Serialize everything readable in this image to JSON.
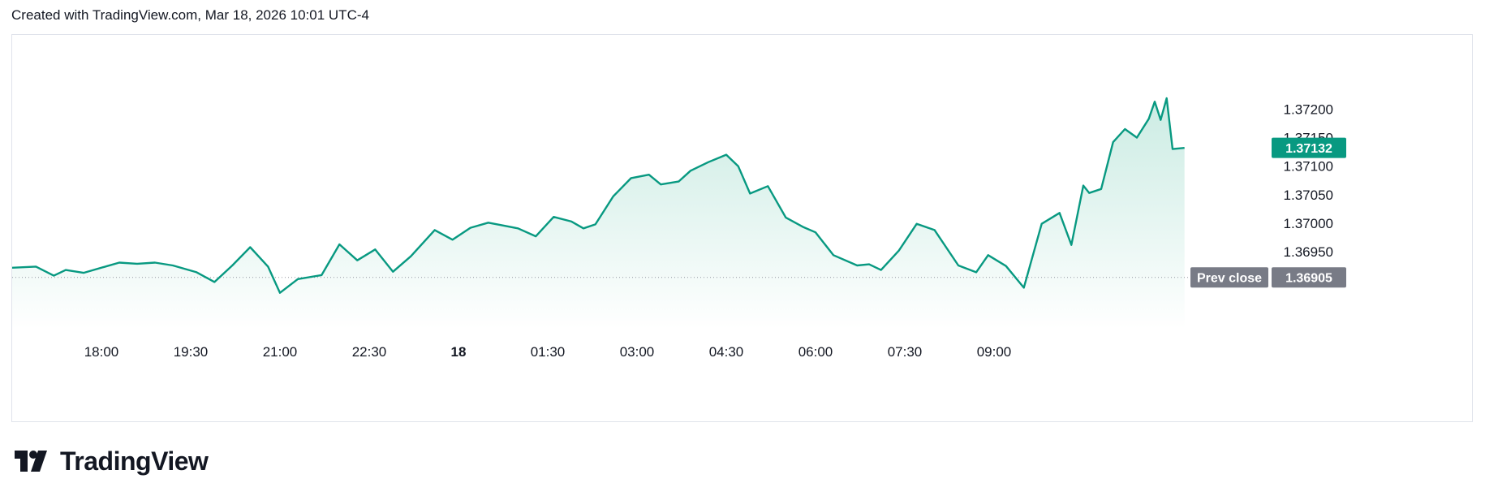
{
  "header": {
    "created_text": "Created with TradingView.com, Mar 18, 2026 10:01 UTC-4"
  },
  "brand": {
    "name": "TradingView",
    "logo_icon": "tradingview-logo-icon"
  },
  "colors": {
    "line": "#089981",
    "fill_top": "#c9ebe2",
    "fill_bottom": "#ffffff",
    "last_price_bg": "#089981",
    "prev_close_bg": "#787b86"
  },
  "labels": {
    "last_price": "1.37132",
    "prev_close_text": "Prev close",
    "prev_close_value": "1.36905"
  },
  "chart_data": {
    "type": "area",
    "title": "",
    "xlabel": "",
    "ylabel": "",
    "x_ticks": [
      "18:00",
      "19:30",
      "21:00",
      "22:30",
      "18",
      "01:30",
      "03:00",
      "04:30",
      "06:00",
      "07:30",
      "09:00"
    ],
    "x_tick_bold": [
      false,
      false,
      false,
      false,
      true,
      false,
      false,
      false,
      false,
      false,
      false
    ],
    "y_ticks": [
      "1.37200",
      "1.37150",
      "1.37100",
      "1.37050",
      "1.37000",
      "1.36950"
    ],
    "ylim": [
      1.36815,
      1.3733
    ],
    "last_price": 1.37132,
    "prev_close": 1.36905,
    "x_hours": [
      16.5,
      16.9,
      17.2,
      17.4,
      17.7,
      18.1,
      18.3,
      18.6,
      18.9,
      19.2,
      19.6,
      19.9,
      20.2,
      20.5,
      20.8,
      21.0,
      21.3,
      21.7,
      22.0,
      22.3,
      22.6,
      22.9,
      23.2,
      23.6,
      23.9,
      24.2,
      24.5,
      24.7,
      25.0,
      25.3,
      25.6,
      25.9,
      26.1,
      26.3,
      26.6,
      26.9,
      27.2,
      27.4,
      27.7,
      27.9,
      28.2,
      28.5,
      28.7,
      28.9,
      29.2,
      29.5,
      29.8,
      30.0,
      30.3,
      30.7,
      30.9,
      31.1,
      31.4,
      31.7,
      32.0,
      32.4,
      32.7,
      32.9,
      33.2,
      33.5,
      33.8,
      34.1,
      34.3,
      34.5,
      34.6,
      34.8,
      35.0,
      35.2,
      35.4,
      35.6,
      35.7,
      35.8,
      35.9,
      36.0,
      36.2
    ],
    "values": [
      1.36922,
      1.36924,
      1.36908,
      1.36918,
      1.36913,
      1.36925,
      1.36931,
      1.36929,
      1.36931,
      1.36926,
      1.36914,
      1.36897,
      1.36926,
      1.36958,
      1.36924,
      1.36878,
      1.36902,
      1.36909,
      1.36963,
      1.36935,
      1.36954,
      1.36915,
      1.36942,
      1.36988,
      1.36971,
      1.36992,
      1.37001,
      1.36997,
      1.36991,
      1.36977,
      1.37011,
      1.37003,
      1.36991,
      1.36998,
      1.37047,
      1.37079,
      1.37085,
      1.37068,
      1.37073,
      1.37092,
      1.37107,
      1.3712,
      1.371,
      1.37052,
      1.37065,
      1.3701,
      1.36993,
      1.36984,
      1.36944,
      1.36926,
      1.36928,
      1.36918,
      1.36952,
      1.36999,
      1.36988,
      1.36926,
      1.36914,
      1.36944,
      1.36925,
      1.36887,
      1.36999,
      1.37018,
      1.36962,
      1.37066,
      1.37053,
      1.3706,
      1.37142,
      1.37165,
      1.3715,
      1.37183,
      1.37213,
      1.37181,
      1.37219,
      1.3713,
      1.37132
    ]
  }
}
